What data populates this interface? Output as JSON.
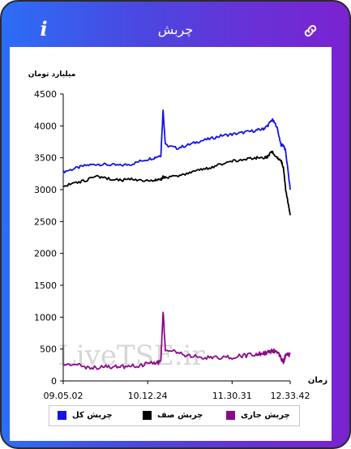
{
  "header": {
    "title": "چربش",
    "info_icon": "i",
    "link_icon": "link-icon"
  },
  "colors": {
    "total": "#1414e6",
    "queue": "#000000",
    "current": "#8a0a8a",
    "header_start": "#2b6ef7",
    "header_end": "#7b22d0"
  },
  "watermark": "LiveTSE.ir",
  "chart_data": {
    "type": "line",
    "ylabel": "میلیارد تومان",
    "xlabel": "زمان",
    "ylim": [
      0,
      4500
    ],
    "yticks": [
      "0",
      "500",
      "1000",
      "1500",
      "2000",
      "2500",
      "3000",
      "3500",
      "4000",
      "4500"
    ],
    "xticks": [
      "09.05.02",
      "10.12.24",
      "11.30.31",
      "12.33.42"
    ],
    "x": [
      0,
      0.05,
      0.1,
      0.15,
      0.2,
      0.25,
      0.3,
      0.35,
      0.4,
      0.43,
      0.44,
      0.45,
      0.5,
      0.55,
      0.6,
      0.65,
      0.7,
      0.75,
      0.8,
      0.85,
      0.88,
      0.9,
      0.92,
      0.94,
      0.96,
      0.97,
      0.98,
      1.0
    ],
    "series": [
      {
        "name": "چربش کل",
        "values": [
          3280,
          3330,
          3380,
          3400,
          3390,
          3380,
          3400,
          3460,
          3500,
          3540,
          4250,
          3700,
          3650,
          3700,
          3760,
          3800,
          3850,
          3870,
          3900,
          3930,
          3950,
          4000,
          4100,
          4000,
          3700,
          3700,
          3600,
          3000
        ]
      },
      {
        "name": "چربش صف",
        "values": [
          3050,
          3100,
          3150,
          3200,
          3170,
          3150,
          3160,
          3150,
          3140,
          3160,
          3200,
          3200,
          3200,
          3250,
          3300,
          3350,
          3400,
          3450,
          3480,
          3500,
          3500,
          3520,
          3600,
          3500,
          3450,
          3350,
          3000,
          2600
        ]
      },
      {
        "name": "چربش جاری",
        "values": [
          230,
          250,
          220,
          200,
          230,
          220,
          240,
          250,
          280,
          300,
          1080,
          500,
          450,
          400,
          380,
          360,
          350,
          380,
          400,
          420,
          430,
          450,
          470,
          480,
          350,
          300,
          400,
          420
        ]
      }
    ]
  }
}
